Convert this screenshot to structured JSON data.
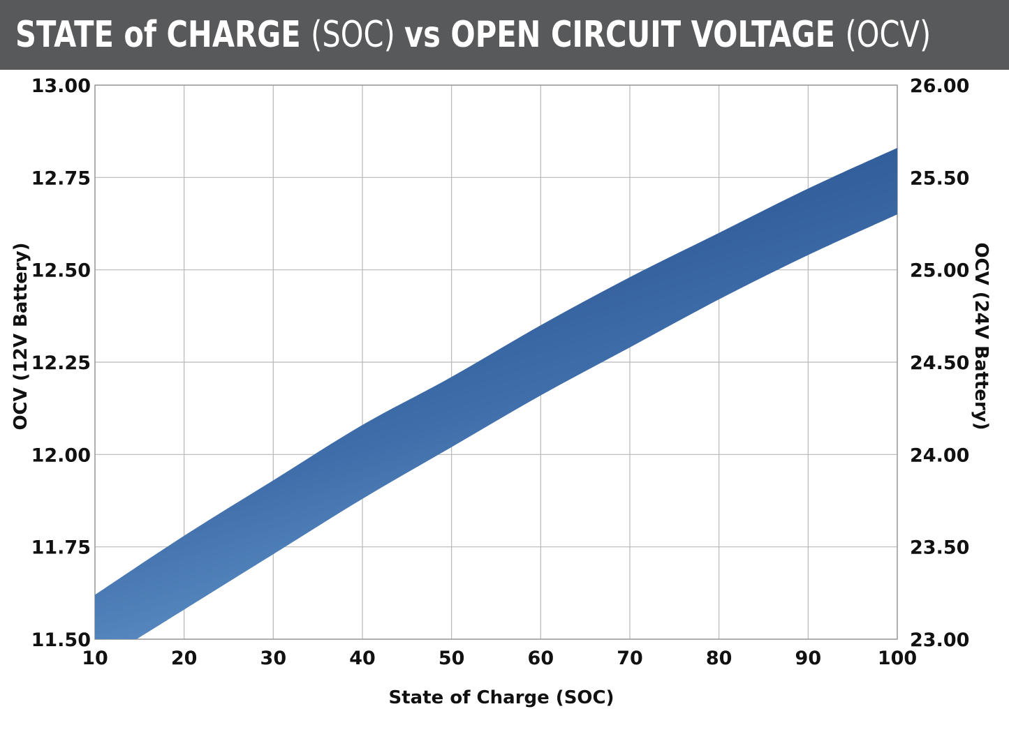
{
  "header": {
    "title_segments": [
      {
        "text": "STATE of CHARGE ",
        "weight": "bold"
      },
      {
        "text": "(SOC) ",
        "weight": "light"
      },
      {
        "text": "vs OPEN CIRCUIT VOLTAGE ",
        "weight": "bold"
      },
      {
        "text": "(OCV)",
        "weight": "light"
      }
    ]
  },
  "colors": {
    "title_bar": "#58595b",
    "band_dark": "#1f4785",
    "band_light": "#7fb1e0",
    "grid": "#b8b8b8"
  },
  "chart_data": {
    "type": "area",
    "title": "STATE of CHARGE (SOC) vs OPEN CIRCUIT VOLTAGE (OCV)",
    "xlabel": "State of Charge (SOC)",
    "ylabel": "OCV (12V Battery)",
    "y2label": "OCV (24V Battery)",
    "xlim": [
      10,
      100
    ],
    "ylim": [
      11.5,
      13.0
    ],
    "y2lim": [
      23.0,
      26.0
    ],
    "x_ticks": [
      "10",
      "20",
      "30",
      "40",
      "50",
      "60",
      "70",
      "80",
      "90",
      "100"
    ],
    "x_tick_values": [
      10,
      20,
      30,
      40,
      50,
      60,
      70,
      80,
      90,
      100
    ],
    "y_ticks": [
      "11.50",
      "11.75",
      "12.00",
      "12.25",
      "12.50",
      "12.75",
      "13.00"
    ],
    "y_tick_values": [
      11.5,
      11.75,
      12.0,
      12.25,
      12.5,
      12.75,
      13.0
    ],
    "y2_ticks": [
      "23.00",
      "23.50",
      "24.00",
      "24.50",
      "25.00",
      "25.50",
      "26.00"
    ],
    "grid": true,
    "series": [
      {
        "x": [
          10,
          20,
          30,
          40,
          50,
          60,
          70,
          80,
          90,
          100
        ],
        "upper": [
          11.62,
          11.78,
          11.93,
          12.08,
          12.21,
          12.35,
          12.48,
          12.6,
          12.72,
          12.83
        ],
        "lower": [
          11.43,
          11.58,
          11.73,
          11.88,
          12.02,
          12.16,
          12.29,
          12.42,
          12.54,
          12.65
        ]
      }
    ]
  }
}
